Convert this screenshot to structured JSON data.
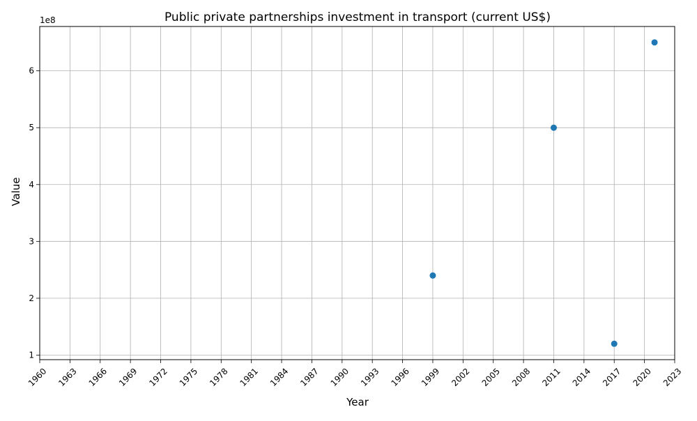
{
  "chart_data": {
    "type": "scatter",
    "title": "Public private partnerships investment in transport (current US$)",
    "xlabel": "Year",
    "ylabel": "Value",
    "y_offset_label": "1e8",
    "xlim": [
      1960,
      2023
    ],
    "ylim": [
      92000000,
      678000000
    ],
    "x_ticks": [
      1960,
      1963,
      1966,
      1969,
      1972,
      1975,
      1978,
      1981,
      1984,
      1987,
      1990,
      1993,
      1996,
      1999,
      2002,
      2005,
      2008,
      2011,
      2014,
      2017,
      2020,
      2023
    ],
    "y_ticks": [
      100000000,
      200000000,
      300000000,
      400000000,
      500000000,
      600000000
    ],
    "y_tick_labels": [
      "1",
      "2",
      "3",
      "4",
      "5",
      "6"
    ],
    "grid": true,
    "color": "#1f77b4",
    "points": [
      {
        "x": 1999,
        "y": 240000000
      },
      {
        "x": 2011,
        "y": 500000000
      },
      {
        "x": 2017,
        "y": 120000000
      },
      {
        "x": 2021,
        "y": 650000000
      }
    ]
  }
}
